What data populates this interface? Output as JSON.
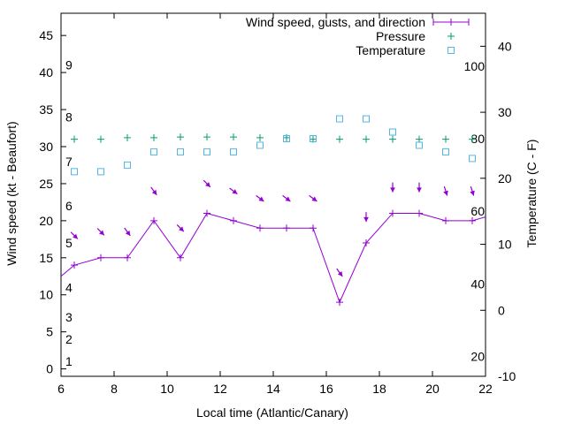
{
  "chart_data": {
    "type": "line",
    "xlabel": "Local time (Atlantic/Canary)",
    "ylabel": "Wind speed (kt - Beaufort)",
    "y2label": "Temperature (C - F)",
    "xlim": [
      6,
      22
    ],
    "ylim": [
      -1,
      48
    ],
    "y2lim": [
      -10,
      45
    ],
    "x_ticks": [
      6,
      8,
      10,
      12,
      14,
      16,
      18,
      20,
      22
    ],
    "y_ticks": [
      0,
      5,
      10,
      15,
      20,
      25,
      30,
      35,
      40,
      45
    ],
    "y2_ticks": [
      -10,
      0,
      10,
      20,
      30,
      40
    ],
    "beaufort_labels": [
      {
        "label": "1",
        "y": 1
      },
      {
        "label": "2",
        "y": 4
      },
      {
        "label": "3",
        "y": 7
      },
      {
        "label": "4",
        "y": 11
      },
      {
        "label": "5",
        "y": 17
      },
      {
        "label": "6",
        "y": 22
      },
      {
        "label": "7",
        "y": 28
      },
      {
        "label": "8",
        "y": 34
      },
      {
        "label": "9",
        "y": 41
      }
    ],
    "fahrenheit_labels": [
      {
        "label": "20",
        "y2": -7
      },
      {
        "label": "40",
        "y2": 4
      },
      {
        "label": "60",
        "y2": 15
      },
      {
        "label": "80",
        "y2": 26
      },
      {
        "label": "100",
        "y2": 37
      }
    ],
    "legend": {
      "position": "top-right",
      "entries": [
        "Wind speed, gusts, and direction",
        "Pressure",
        "Temperature"
      ]
    },
    "colors": {
      "wind": "#9400d3",
      "pressure": "#009e73",
      "temperature": "#56b4e9"
    },
    "series": [
      {
        "name": "Wind speed, gusts, and direction",
        "axis": "y",
        "x": [
          6,
          6.5,
          7.5,
          8.5,
          9.5,
          10.5,
          11.5,
          12.5,
          13.5,
          14.5,
          15.5,
          16.5,
          17.5,
          18.5,
          19.5,
          20.5,
          21.5,
          22
        ],
        "y": [
          12.5,
          14,
          15,
          15,
          20,
          15,
          21,
          20,
          19,
          19,
          19,
          9,
          17,
          21,
          21,
          20,
          20,
          20.5
        ]
      },
      {
        "name": "Pressure",
        "axis": "y",
        "x": [
          6.5,
          7.5,
          8.5,
          9.5,
          10.5,
          11.5,
          12.5,
          13.5,
          14.5,
          15.5,
          16.5,
          17.5,
          18.5,
          19.5,
          20.5,
          21.5
        ],
        "y": [
          31,
          31,
          31.2,
          31.2,
          31.3,
          31.3,
          31.3,
          31.2,
          31.2,
          31,
          31,
          31,
          31,
          31,
          31,
          31
        ]
      },
      {
        "name": "Temperature",
        "axis": "y2",
        "x": [
          6.5,
          7.5,
          8.5,
          9.5,
          10.5,
          11.5,
          12.5,
          13.5,
          14.5,
          15.5,
          16.5,
          17.5,
          18.5,
          19.5,
          20.5,
          21.5
        ],
        "y": [
          21,
          21,
          22,
          24,
          24,
          24,
          24,
          25,
          26,
          26,
          29,
          29,
          27,
          25,
          24,
          23
        ]
      }
    ],
    "gust_arrows": [
      {
        "x": 6.5,
        "y": 18,
        "dx": 0.7,
        "dy": 0.7
      },
      {
        "x": 7.5,
        "y": 18.5,
        "dx": 0.7,
        "dy": 0.7
      },
      {
        "x": 8.5,
        "y": 18.5,
        "dx": 0.6,
        "dy": 0.8
      },
      {
        "x": 9.5,
        "y": 24,
        "dx": 0.6,
        "dy": 0.8
      },
      {
        "x": 10.5,
        "y": 19,
        "dx": 0.7,
        "dy": 0.7
      },
      {
        "x": 11.5,
        "y": 25,
        "dx": 0.7,
        "dy": 0.7
      },
      {
        "x": 12.5,
        "y": 24,
        "dx": 0.8,
        "dy": 0.6
      },
      {
        "x": 13.5,
        "y": 23,
        "dx": 0.8,
        "dy": 0.6
      },
      {
        "x": 14.5,
        "y": 23,
        "dx": 0.8,
        "dy": 0.6
      },
      {
        "x": 15.5,
        "y": 23,
        "dx": 0.8,
        "dy": 0.6
      },
      {
        "x": 16.5,
        "y": 13,
        "dx": 0.6,
        "dy": 0.8
      },
      {
        "x": 17.5,
        "y": 20.5,
        "dx": 0,
        "dy": 1
      },
      {
        "x": 18.5,
        "y": 24.5,
        "dx": 0,
        "dy": 1
      },
      {
        "x": 19.5,
        "y": 24.5,
        "dx": 0,
        "dy": 1
      },
      {
        "x": 20.5,
        "y": 24,
        "dx": 0.3,
        "dy": 0.95
      },
      {
        "x": 21.5,
        "y": 24,
        "dx": 0.3,
        "dy": 0.95
      }
    ]
  }
}
